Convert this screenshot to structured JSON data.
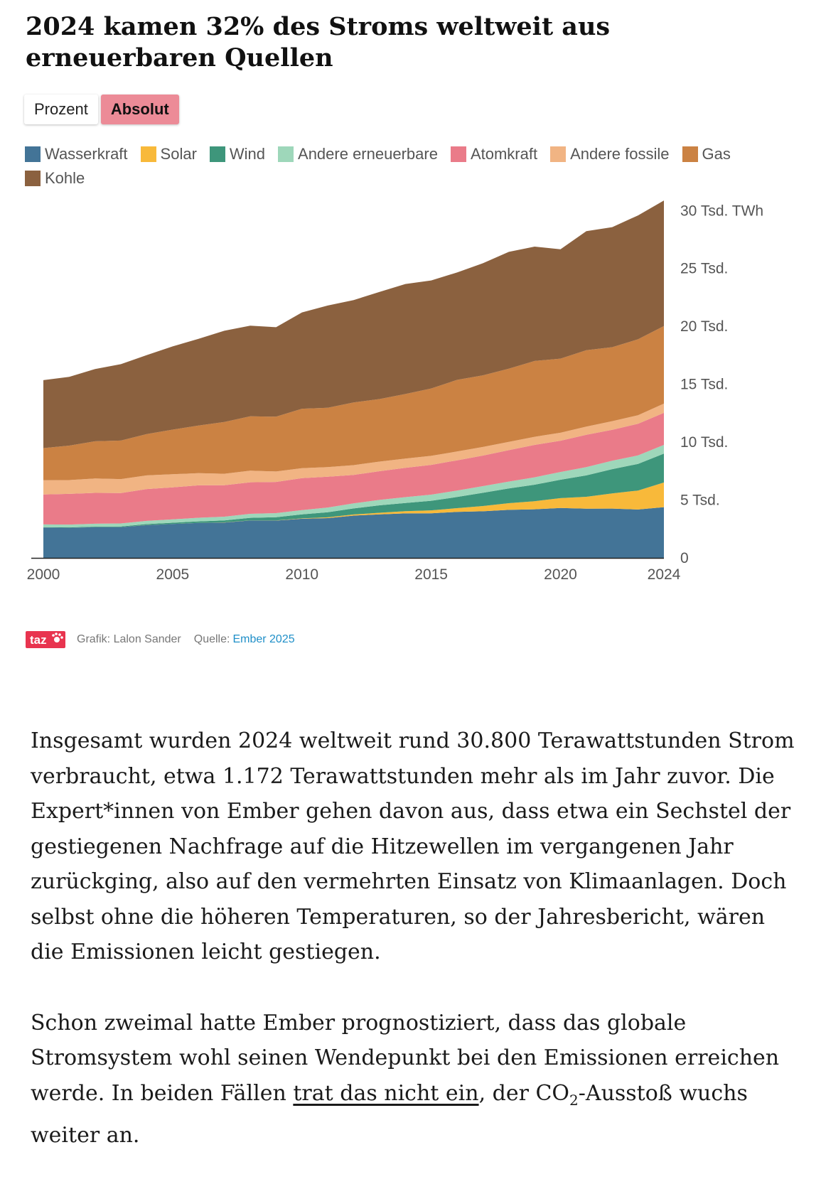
{
  "title": "2024 kamen 32% des Stroms weltweit aus erneuerbaren Quellen",
  "toggle": {
    "options": [
      "Prozent",
      "Absolut"
    ],
    "selected": "Absolut"
  },
  "colors": {
    "Wasserkraft": "#437497",
    "Solar": "#f8b93a",
    "Wind": "#3e967b",
    "Andere erneuerbare": "#9ed7ba",
    "Atomkraft": "#ea7b89",
    "Andere fossile": "#f1b483",
    "Gas": "#cb8243",
    "Kohle": "#8b613f"
  },
  "chart_data": {
    "type": "area",
    "stacked": true,
    "x": [
      2000,
      2001,
      2002,
      2003,
      2004,
      2005,
      2006,
      2007,
      2008,
      2009,
      2010,
      2011,
      2012,
      2013,
      2014,
      2015,
      2016,
      2017,
      2018,
      2019,
      2020,
      2021,
      2022,
      2023,
      2024
    ],
    "series": [
      {
        "name": "Wasserkraft",
        "values": [
          2620,
          2600,
          2650,
          2650,
          2830,
          2930,
          3020,
          3060,
          3230,
          3220,
          3380,
          3440,
          3650,
          3760,
          3840,
          3850,
          3970,
          4030,
          4150,
          4200,
          4310,
          4250,
          4260,
          4180,
          4380
        ]
      },
      {
        "name": "Solar",
        "values": [
          1,
          2,
          2,
          3,
          4,
          4,
          5,
          7,
          12,
          20,
          32,
          63,
          100,
          140,
          195,
          255,
          330,
          450,
          575,
          700,
          850,
          1030,
          1310,
          1640,
          2130
        ]
      },
      {
        "name": "Wind",
        "values": [
          31,
          38,
          52,
          63,
          85,
          104,
          133,
          171,
          221,
          275,
          342,
          437,
          520,
          640,
          712,
          830,
          960,
          1140,
          1270,
          1420,
          1590,
          1850,
          2100,
          2300,
          2500
        ]
      },
      {
        "name": "Andere erneuerbare",
        "values": [
          240,
          240,
          250,
          260,
          280,
          290,
          310,
          320,
          340,
          350,
          380,
          410,
          440,
          470,
          500,
          530,
          560,
          580,
          600,
          640,
          670,
          710,
          720,
          730,
          750
        ]
      },
      {
        "name": "Atomkraft",
        "values": [
          2590,
          2650,
          2660,
          2630,
          2750,
          2770,
          2800,
          2720,
          2730,
          2700,
          2760,
          2660,
          2460,
          2480,
          2530,
          2570,
          2610,
          2640,
          2710,
          2800,
          2700,
          2800,
          2680,
          2740,
          2770
        ]
      },
      {
        "name": "Andere fossile",
        "values": [
          1230,
          1190,
          1240,
          1200,
          1180,
          1130,
          1050,
          990,
          1000,
          900,
          850,
          830,
          840,
          830,
          800,
          780,
          760,
          740,
          720,
          700,
          690,
          700,
          740,
          730,
          800
        ]
      },
      {
        "name": "Gas",
        "values": [
          2770,
          2980,
          3220,
          3330,
          3570,
          3850,
          4110,
          4470,
          4700,
          4730,
          5140,
          5130,
          5420,
          5400,
          5580,
          5820,
          6190,
          6190,
          6320,
          6550,
          6400,
          6600,
          6390,
          6560,
          6700
        ]
      },
      {
        "name": "Kohle",
        "values": [
          5870,
          5940,
          6240,
          6600,
          6820,
          7190,
          7500,
          7880,
          7820,
          7730,
          8320,
          8830,
          8840,
          9250,
          9500,
          9330,
          9270,
          9680,
          10090,
          9880,
          9450,
          10280,
          10370,
          10700,
          10840
        ]
      }
    ],
    "xticks": [
      "2000",
      "2005",
      "2010",
      "2015",
      "2020",
      "2024"
    ],
    "yticks": [
      {
        "value": 0,
        "label": "0"
      },
      {
        "value": 5000,
        "label": "5 Tsd."
      },
      {
        "value": 10000,
        "label": "10 Tsd."
      },
      {
        "value": 15000,
        "label": "15 Tsd."
      },
      {
        "value": 20000,
        "label": "20 Tsd."
      },
      {
        "value": 25000,
        "label": "25 Tsd."
      },
      {
        "value": 30000,
        "label": "30 Tsd. TWh"
      }
    ],
    "ylim": [
      0,
      31000
    ],
    "xlabel": "",
    "ylabel": "TWh"
  },
  "footer": {
    "logo": "taz",
    "credit": "Grafik: Lalon Sander",
    "source_label": "Quelle:",
    "source_link": "Ember 2025"
  },
  "article": {
    "p1": "Insgesamt wurden 2024 weltweit rund 30.800 Terawattstunden Strom verbraucht, etwa 1.172 Terawattstunden mehr als im Jahr zuvor. Die Ex­pert*innen von Ember gehen davon aus, dass etwa ein Sechstel der gestiegenen Nachfrage auf die Hitzewellen im vergangenen Jahr zurückging, also auf den vermehrten Einsatz von Klimaanlagen. Doch selbst ohne die höheren Temperaturen, so der Jahresbericht, wären die Emissionen leicht gestiegen.",
    "p2_start": "Schon zweimal hatte Ember prognostiziert, dass das globale Stromsystem wohl seinen Wendepunkt bei den Emissionen erreichen werde. In beiden Fällen ",
    "p2_link": "trat das nicht ein",
    "p2_mid": ", der CO",
    "p2_sub": "2",
    "p2_end": "-Ausstoß wuchs weiter an."
  }
}
